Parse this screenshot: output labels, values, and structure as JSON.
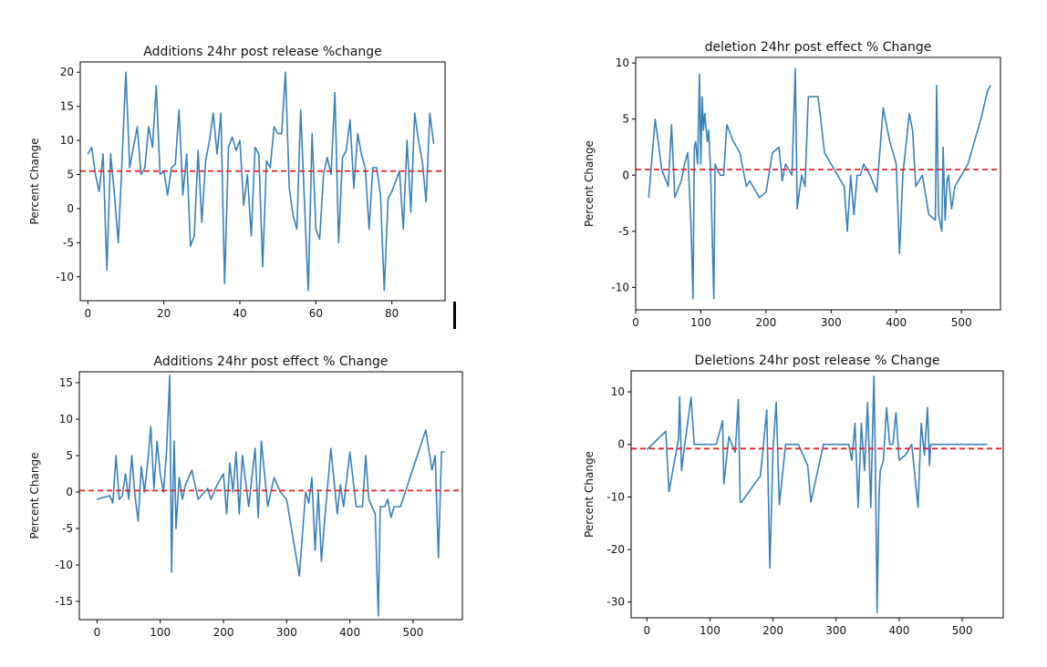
{
  "chart_data": [
    {
      "type": "line",
      "title": "Additions 24hr post release %change",
      "ylabel": "Percent Change",
      "xlim": [
        -2,
        94
      ],
      "ylim": [
        -13.5,
        21.5
      ],
      "xticks": [
        0,
        20,
        40,
        60,
        80
      ],
      "yticks": [
        -10,
        -5,
        0,
        5,
        10,
        15,
        20
      ],
      "reference_line": 5.5,
      "x": [
        0,
        1,
        2,
        3,
        4,
        5,
        6,
        7,
        8,
        9,
        10,
        11,
        12,
        13,
        14,
        15,
        16,
        17,
        18,
        19,
        20,
        21,
        22,
        23,
        24,
        25,
        26,
        27,
        28,
        29,
        30,
        31,
        32,
        33,
        34,
        35,
        36,
        37,
        38,
        39,
        40,
        41,
        42,
        43,
        44,
        45,
        46,
        47,
        48,
        49,
        50,
        51,
        52,
        53,
        54,
        55,
        56,
        57,
        58,
        59,
        60,
        61,
        62,
        63,
        64,
        65,
        66,
        67,
        68,
        69,
        70,
        71,
        72,
        73,
        74,
        75,
        76,
        77,
        78,
        79,
        80,
        81,
        82,
        83,
        84,
        85,
        86,
        87,
        88,
        89,
        90,
        91
      ],
      "y": [
        8,
        9,
        5,
        2.5,
        8,
        -9,
        8,
        2,
        -5,
        7,
        20,
        6,
        9,
        12,
        5,
        6,
        12,
        9,
        18,
        5,
        5.5,
        2,
        6,
        6.5,
        14.5,
        2,
        8,
        -5.5,
        -4,
        8.5,
        -2,
        7,
        10,
        14,
        8,
        14,
        -11,
        9,
        10.5,
        8.5,
        10,
        0.5,
        5,
        -4,
        9,
        8,
        -8.5,
        7,
        6,
        12,
        11,
        11,
        20,
        3,
        -1,
        -3,
        14.5,
        1,
        -12,
        11,
        -3,
        -4.5,
        5,
        7.5,
        5,
        17,
        -5,
        7.5,
        8.5,
        13,
        3,
        11,
        8,
        6,
        -3,
        6,
        6,
        2,
        -12,
        1.5,
        2.5,
        4,
        5.5,
        -3,
        10,
        -0.5,
        14,
        10,
        7,
        1,
        14,
        9.5
      ]
    },
    {
      "type": "line",
      "title": "deletion 24hr post effect % Change",
      "ylabel": "Percent Change",
      "xlim": [
        0,
        560
      ],
      "ylim": [
        -12,
        10.5
      ],
      "xticks": [
        0,
        100,
        200,
        300,
        400,
        500
      ],
      "yticks": [
        -10,
        -5,
        0,
        5,
        10
      ],
      "reference_line": 0.5,
      "x": [
        20,
        30,
        40,
        50,
        55,
        60,
        70,
        75,
        80,
        85,
        88,
        90,
        92,
        95,
        98,
        100,
        102,
        104,
        106,
        110,
        112,
        115,
        120,
        122,
        125,
        130,
        135,
        140,
        150,
        160,
        170,
        175,
        180,
        190,
        200,
        210,
        220,
        225,
        230,
        240,
        245,
        248,
        250,
        255,
        260,
        265,
        270,
        280,
        290,
        300,
        310,
        320,
        325,
        330,
        335,
        340,
        345,
        350,
        360,
        370,
        380,
        390,
        400,
        405,
        410,
        420,
        425,
        430,
        440,
        450,
        460,
        462,
        465,
        470,
        472,
        475,
        478,
        480,
        485,
        490,
        500,
        510,
        520,
        530,
        540,
        545
      ],
      "y": [
        -2,
        5,
        0.5,
        -1,
        4.5,
        -2,
        -0.5,
        1,
        2,
        -4.5,
        -11,
        2.5,
        3,
        1,
        9,
        1,
        7,
        4,
        5.5,
        3,
        4,
        0.5,
        -11,
        1,
        0.5,
        0,
        0,
        4.5,
        3,
        2,
        -1,
        -0.5,
        -1,
        -2,
        -1.5,
        2,
        2.5,
        -0.5,
        1,
        0,
        9.5,
        -3,
        -2,
        0,
        -1,
        7,
        7,
        7,
        2,
        1,
        0,
        -1,
        -5,
        0,
        -3.5,
        0,
        0,
        1,
        0,
        -1.5,
        6,
        3,
        1,
        -7,
        0,
        5.5,
        4,
        -1,
        0,
        -3.5,
        -4,
        8,
        -3.5,
        -5,
        2.5,
        -4,
        -0.5,
        0,
        -3,
        -1,
        0,
        1,
        3,
        5,
        7.5,
        8
      ]
    },
    {
      "type": "line",
      "title": "Additions 24hr post effect % Change",
      "ylabel": "Percent Change",
      "xlim": [
        -28,
        578
      ],
      "ylim": [
        -17.5,
        16.5
      ],
      "xticks": [
        0,
        100,
        200,
        300,
        400,
        500
      ],
      "yticks": [
        -15,
        -10,
        -5,
        0,
        5,
        10,
        15
      ],
      "reference_line": 0.2,
      "x": [
        0,
        20,
        25,
        30,
        35,
        40,
        45,
        50,
        55,
        60,
        65,
        70,
        75,
        80,
        85,
        90,
        95,
        100,
        105,
        110,
        115,
        118,
        120,
        122,
        125,
        130,
        135,
        140,
        150,
        160,
        170,
        175,
        180,
        190,
        200,
        205,
        210,
        215,
        220,
        225,
        230,
        240,
        250,
        255,
        260,
        270,
        280,
        290,
        300,
        320,
        330,
        335,
        340,
        345,
        350,
        355,
        360,
        370,
        380,
        385,
        390,
        400,
        410,
        420,
        425,
        430,
        440,
        445,
        448,
        455,
        460,
        465,
        470,
        480,
        520,
        530,
        535,
        540,
        545,
        550
      ],
      "y": [
        -1,
        -0.5,
        -1.5,
        5,
        -1,
        -0.5,
        2.5,
        -1,
        5,
        -0.5,
        -4,
        3.5,
        0,
        4,
        9,
        0.5,
        7,
        2.5,
        0,
        5.5,
        16,
        -11,
        0,
        7,
        -5,
        2,
        -1,
        1,
        3,
        -1,
        0,
        0.5,
        -1,
        1,
        2.5,
        -3,
        4,
        0,
        5.5,
        -3,
        5,
        -2,
        6,
        -3.5,
        7,
        -2,
        2,
        0,
        -1,
        -11.5,
        0,
        -1.5,
        2,
        -8,
        0,
        -9.5,
        -4,
        6,
        -3,
        1,
        -2,
        5.5,
        -2,
        -2,
        5,
        -1,
        -3,
        -17,
        -2,
        -2,
        -1,
        -3.5,
        -2,
        -2,
        8.5,
        3,
        5,
        -9,
        5.5,
        5.5
      ]
    },
    {
      "type": "line",
      "title": "Deletions 24hr post release % Change",
      "ylabel": "Percent Change",
      "xlim": [
        -25,
        565
      ],
      "ylim": [
        -33,
        14
      ],
      "xticks": [
        0,
        100,
        200,
        300,
        400,
        500
      ],
      "yticks": [
        -30,
        -20,
        -10,
        0,
        10
      ],
      "reference_line": -0.8,
      "x": [
        0,
        30,
        35,
        50,
        52,
        55,
        60,
        70,
        75,
        80,
        110,
        120,
        122,
        130,
        135,
        140,
        145,
        148,
        150,
        180,
        190,
        195,
        200,
        205,
        210,
        220,
        240,
        255,
        260,
        280,
        290,
        300,
        310,
        320,
        325,
        330,
        335,
        340,
        345,
        350,
        355,
        360,
        362,
        365,
        368,
        370,
        375,
        380,
        385,
        390,
        395,
        400,
        410,
        420,
        430,
        435,
        440,
        445,
        448,
        450,
        460,
        470,
        480,
        540
      ],
      "y": [
        -1,
        2.5,
        -9,
        1,
        9,
        -5,
        0,
        9,
        0,
        0,
        0,
        4.5,
        -7.5,
        1.5,
        0,
        -1.5,
        8.5,
        -11,
        -11,
        -6,
        6.5,
        -23.5,
        -1,
        8,
        -11.5,
        0,
        0,
        -4,
        -11,
        0,
        0,
        0,
        0,
        0,
        -3,
        4,
        -12,
        4,
        -5,
        8,
        -12,
        13,
        0,
        -32,
        -10,
        -5,
        -3,
        7,
        0,
        0,
        6,
        -3,
        -2,
        0,
        -12,
        4,
        -2,
        7,
        -4,
        0,
        0,
        0,
        0,
        0
      ]
    }
  ]
}
